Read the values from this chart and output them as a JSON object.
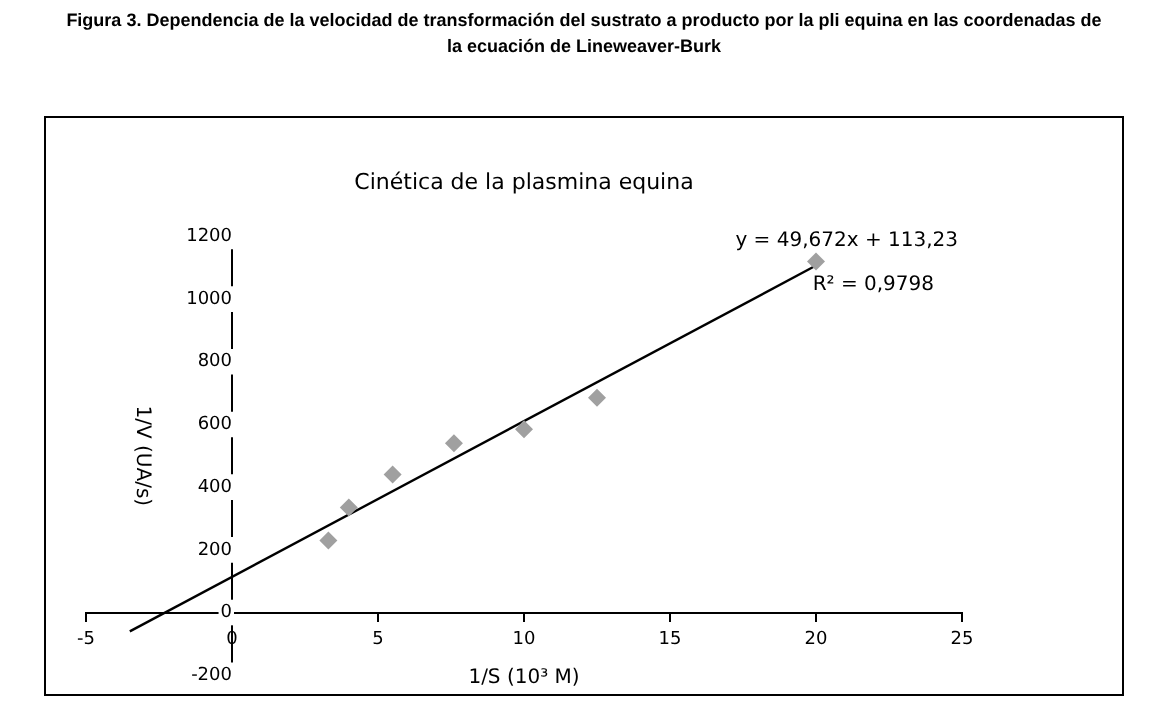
{
  "chart_data": {
    "type": "scatter",
    "title": "Figura 3. Dependencia de la velocidad de transformación del sustrato a producto por la pli equina en las coordenadas de la ecuación de Lineweaver-Burk",
    "subtitle": "Cinética de la plasmina equina",
    "xlabel": "1/S (10³ M)",
    "ylabel": "1/V (UA/s)",
    "xlim": [
      -5,
      25
    ],
    "xticks": [
      -5,
      0,
      5,
      10,
      15,
      20,
      25
    ],
    "ylim": [
      -200,
      1200
    ],
    "yticks": [
      -200,
      0,
      200,
      400,
      600,
      800,
      1000,
      1200
    ],
    "grid": false,
    "legend": false,
    "marker": "diamond",
    "series": [
      {
        "type": "scatter",
        "color": "#a0a0a0",
        "x": [
          3.3,
          4,
          5.5,
          7.6,
          10,
          12.5,
          20
        ],
        "values": [
          230,
          335,
          440,
          540,
          585,
          685,
          1120
        ]
      },
      {
        "type": "line",
        "color": "#000000",
        "marker": "none",
        "line_style": "solid",
        "x": [
          -3.5,
          20
        ],
        "values": [
          -60,
          1107
        ]
      }
    ],
    "annotations": [
      "y = 49,672x + 113,23",
      "R² = 0,9798"
    ]
  }
}
